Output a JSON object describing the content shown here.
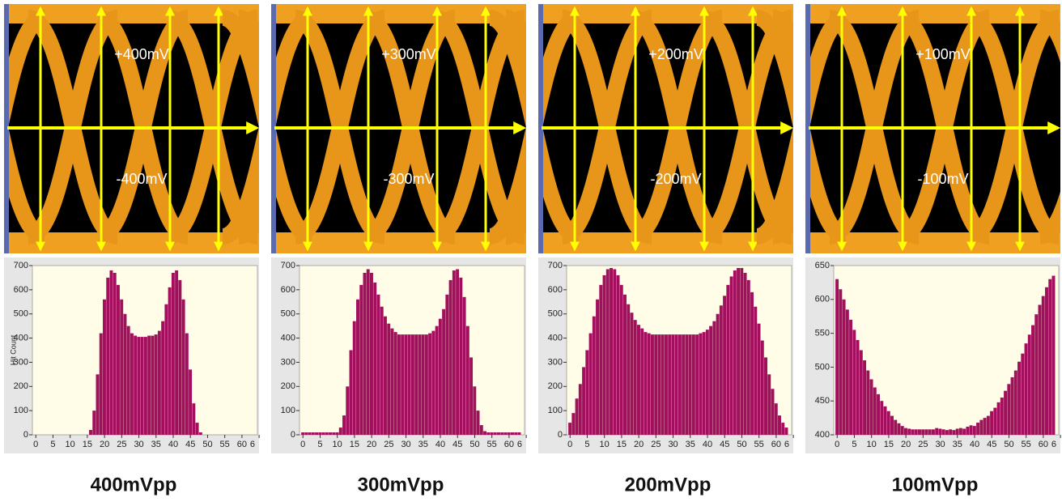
{
  "chart_data": [
    {
      "type": "bar",
      "title": "400mVpp",
      "annotations": [
        "+400mV",
        "-400mV"
      ],
      "y_label": "Hit Count",
      "color": "#a20f5c",
      "xlim": [
        -1,
        64.5
      ],
      "xticks": [
        0,
        5,
        10,
        15,
        20,
        25,
        30,
        35,
        40,
        45,
        50,
        55,
        60,
        {
          "value": 65,
          "label": "6"
        }
      ],
      "ylim": [
        0,
        700
      ],
      "yticks": [
        0,
        100,
        200,
        300,
        400,
        500,
        600,
        700
      ],
      "x": [
        0,
        1,
        2,
        3,
        4,
        5,
        6,
        7,
        8,
        9,
        10,
        11,
        12,
        13,
        14,
        15,
        16,
        17,
        18,
        19,
        20,
        21,
        22,
        23,
        24,
        25,
        26,
        27,
        28,
        29,
        30,
        31,
        32,
        33,
        34,
        35,
        36,
        37,
        38,
        39,
        40,
        41,
        42,
        43,
        44,
        45,
        46,
        47,
        48,
        49,
        50,
        51,
        52,
        53,
        54,
        55,
        56,
        57,
        58,
        59,
        60,
        61,
        62,
        63
      ],
      "values": [
        0,
        0,
        0,
        0,
        0,
        0,
        0,
        0,
        0,
        0,
        0,
        0,
        0,
        0,
        0,
        0,
        20,
        100,
        250,
        420,
        560,
        650,
        680,
        670,
        620,
        560,
        500,
        450,
        420,
        410,
        405,
        405,
        405,
        410,
        410,
        415,
        430,
        470,
        540,
        610,
        670,
        680,
        640,
        560,
        420,
        270,
        130,
        50,
        10,
        0,
        0,
        0,
        0,
        0,
        0,
        0,
        0,
        0,
        0,
        0,
        0,
        0,
        0,
        0
      ]
    },
    {
      "type": "bar",
      "title": "300mVpp",
      "annotations": [
        "+300mV",
        "-300mV"
      ],
      "color": "#a20f5c",
      "xlim": [
        -1,
        64.5
      ],
      "xticks": [
        0,
        5,
        10,
        15,
        20,
        25,
        30,
        35,
        40,
        45,
        50,
        55,
        60,
        {
          "value": 65,
          "label": "6"
        }
      ],
      "ylim": [
        0,
        700
      ],
      "yticks": [
        0,
        100,
        200,
        300,
        400,
        500,
        600,
        700
      ],
      "x": [
        0,
        1,
        2,
        3,
        4,
        5,
        6,
        7,
        8,
        9,
        10,
        11,
        12,
        13,
        14,
        15,
        16,
        17,
        18,
        19,
        20,
        21,
        22,
        23,
        24,
        25,
        26,
        27,
        28,
        29,
        30,
        31,
        32,
        33,
        34,
        35,
        36,
        37,
        38,
        39,
        40,
        41,
        42,
        43,
        44,
        45,
        46,
        47,
        48,
        49,
        50,
        51,
        52,
        53,
        54,
        55,
        56,
        57,
        58,
        59,
        60,
        61,
        62,
        63
      ],
      "values": [
        10,
        10,
        10,
        10,
        10,
        10,
        10,
        10,
        10,
        10,
        10,
        30,
        80,
        200,
        350,
        470,
        560,
        620,
        670,
        685,
        670,
        630,
        580,
        530,
        490,
        460,
        440,
        425,
        415,
        415,
        415,
        415,
        415,
        415,
        415,
        415,
        415,
        420,
        430,
        450,
        480,
        520,
        580,
        640,
        680,
        685,
        650,
        570,
        450,
        320,
        200,
        100,
        40,
        15,
        10,
        10,
        10,
        10,
        10,
        10,
        10,
        10,
        10,
        10
      ]
    },
    {
      "type": "bar",
      "title": "200mVpp",
      "annotations": [
        "+200mV",
        "-200mV"
      ],
      "color": "#a20f5c",
      "xlim": [
        -1,
        64.5
      ],
      "xticks": [
        0,
        5,
        10,
        15,
        20,
        25,
        30,
        35,
        40,
        45,
        50,
        55,
        60,
        {
          "value": 65,
          "label": "6"
        }
      ],
      "ylim": [
        0,
        700
      ],
      "yticks": [
        0,
        100,
        200,
        300,
        400,
        500,
        600,
        700
      ],
      "x": [
        0,
        1,
        2,
        3,
        4,
        5,
        6,
        7,
        8,
        9,
        10,
        11,
        12,
        13,
        14,
        15,
        16,
        17,
        18,
        19,
        20,
        21,
        22,
        23,
        24,
        25,
        26,
        27,
        28,
        29,
        30,
        31,
        32,
        33,
        34,
        35,
        36,
        37,
        38,
        39,
        40,
        41,
        42,
        43,
        44,
        45,
        46,
        47,
        48,
        49,
        50,
        51,
        52,
        53,
        54,
        55,
        56,
        57,
        58,
        59,
        60,
        61,
        62,
        63
      ],
      "values": [
        50,
        90,
        150,
        210,
        280,
        350,
        420,
        490,
        560,
        620,
        660,
        685,
        690,
        685,
        660,
        620,
        580,
        540,
        505,
        475,
        455,
        440,
        425,
        420,
        415,
        415,
        415,
        415,
        415,
        415,
        415,
        415,
        415,
        415,
        415,
        415,
        415,
        415,
        420,
        425,
        435,
        450,
        470,
        500,
        535,
        575,
        620,
        655,
        680,
        690,
        690,
        670,
        640,
        590,
        530,
        460,
        390,
        320,
        250,
        190,
        130,
        80,
        50,
        30
      ]
    },
    {
      "type": "bar",
      "title": "100mVpp",
      "annotations": [
        "+100mV",
        "-100mV"
      ],
      "color": "#a20f5c",
      "xlim": [
        -1,
        64.5
      ],
      "xticks": [
        0,
        5,
        10,
        15,
        20,
        25,
        30,
        35,
        40,
        45,
        50,
        55,
        60,
        {
          "value": 65,
          "label": "6"
        }
      ],
      "ylim": [
        400,
        650
      ],
      "yticks": [
        400,
        450,
        500,
        550,
        600,
        650
      ],
      "x": [
        0,
        1,
        2,
        3,
        4,
        5,
        6,
        7,
        8,
        9,
        10,
        11,
        12,
        13,
        14,
        15,
        16,
        17,
        18,
        19,
        20,
        21,
        22,
        23,
        24,
        25,
        26,
        27,
        28,
        29,
        30,
        31,
        32,
        33,
        34,
        35,
        36,
        37,
        38,
        39,
        40,
        41,
        42,
        43,
        44,
        45,
        46,
        47,
        48,
        49,
        50,
        51,
        52,
        53,
        54,
        55,
        56,
        57,
        58,
        59,
        60,
        61,
        62,
        63
      ],
      "values": [
        630,
        615,
        600,
        585,
        570,
        555,
        540,
        525,
        510,
        495,
        482,
        470,
        460,
        450,
        442,
        435,
        428,
        422,
        417,
        413,
        410,
        409,
        408,
        408,
        408,
        408,
        408,
        408,
        408,
        410,
        409,
        408,
        407,
        408,
        407,
        409,
        410,
        409,
        412,
        414,
        413,
        418,
        422,
        425,
        428,
        435,
        440,
        448,
        455,
        465,
        475,
        485,
        495,
        508,
        520,
        535,
        548,
        562,
        578,
        592,
        605,
        618,
        630,
        635
      ]
    }
  ]
}
